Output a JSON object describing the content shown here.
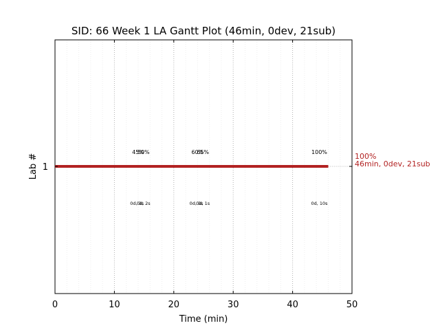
{
  "chart_data": {
    "type": "gantt",
    "title": "SID: 66 Week 1 LA Gantt Plot (46min, 0dev, 21sub)",
    "xlabel": "Time (min)",
    "ylabel": "Lab #",
    "xlim": [
      0,
      50
    ],
    "xticks": [
      "0",
      "10",
      "20",
      "30",
      "40",
      "50"
    ],
    "major_grid_x": [
      10,
      20,
      30,
      40
    ],
    "minor_grid_step": 2,
    "y_categories": [
      "1"
    ],
    "bars": [
      {
        "lab": "1",
        "start": 0,
        "end": 46,
        "color": "#b22222"
      }
    ],
    "top_annotations": [
      {
        "x": 14.0,
        "text": "45%"
      },
      {
        "x": 14.9,
        "text": "50%"
      },
      {
        "x": 24.0,
        "text": "60%"
      },
      {
        "x": 24.9,
        "text": "65%"
      },
      {
        "x": 44.5,
        "text": "100%"
      }
    ],
    "bottom_annotations": [
      {
        "x": 13.8,
        "text": "0d, 3s"
      },
      {
        "x": 14.9,
        "text": "0d, 2s"
      },
      {
        "x": 23.8,
        "text": "0d, 3s"
      },
      {
        "x": 24.9,
        "text": "0d, 1s"
      },
      {
        "x": 44.5,
        "text": "0d, 10s"
      }
    ],
    "end_label": {
      "line1": "100%",
      "line2": "46min, 0dev, 21sub"
    }
  }
}
